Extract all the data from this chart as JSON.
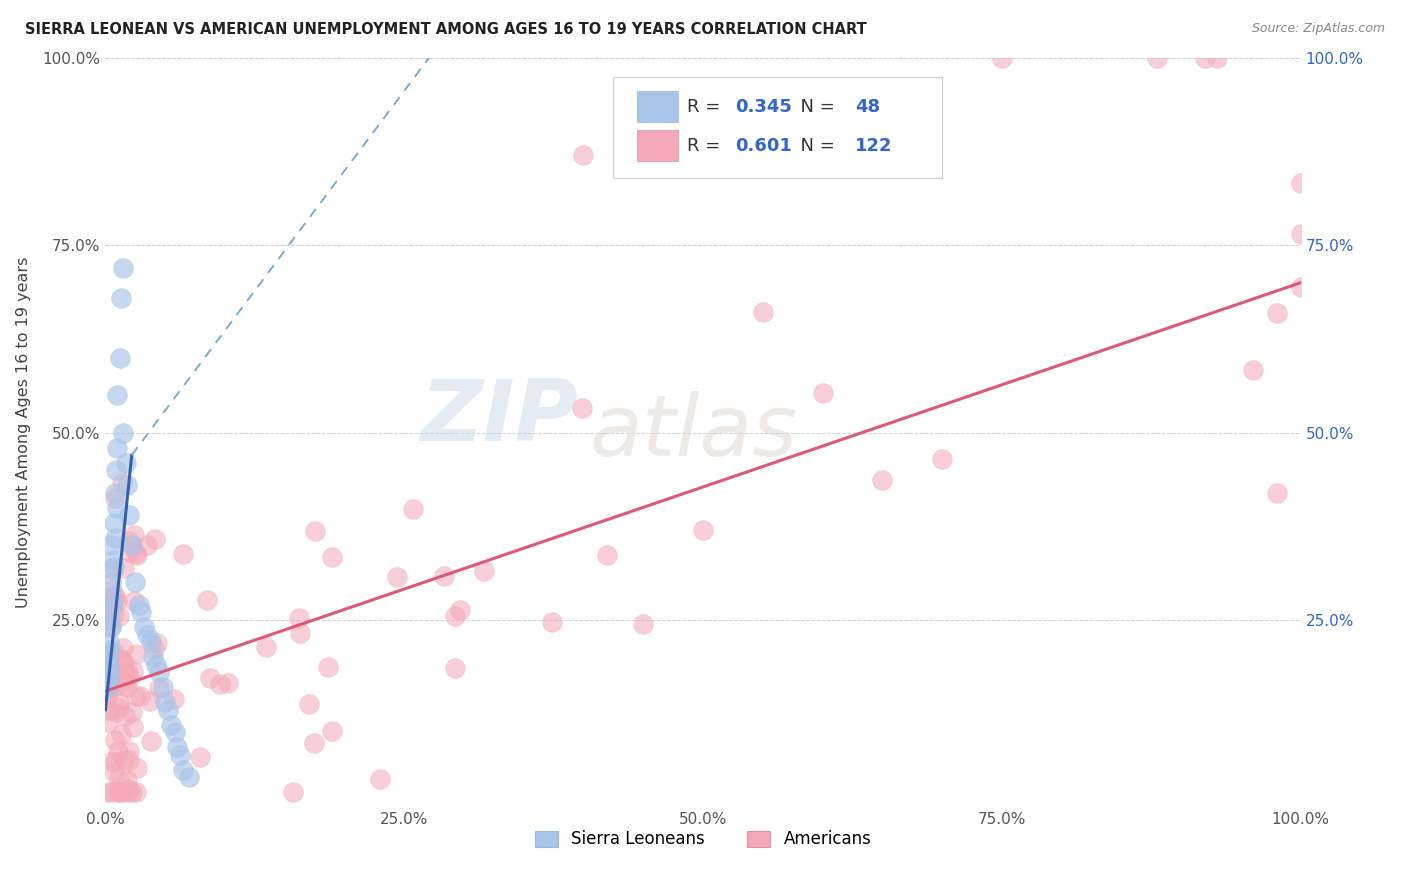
{
  "title": "SIERRA LEONEAN VS AMERICAN UNEMPLOYMENT AMONG AGES 16 TO 19 YEARS CORRELATION CHART",
  "source": "Source: ZipAtlas.com",
  "ylabel": "Unemployment Among Ages 16 to 19 years",
  "xlim": [
    0,
    1.0
  ],
  "ylim": [
    0,
    1.0
  ],
  "xtick_labels": [
    "0.0%",
    "25.0%",
    "50.0%",
    "75.0%",
    "100.0%"
  ],
  "xtick_vals": [
    0.0,
    0.25,
    0.5,
    0.75,
    1.0
  ],
  "ytick_labels_left": [
    "",
    "25.0%",
    "50.0%",
    "75.0%",
    "100.0%"
  ],
  "ytick_vals": [
    0.0,
    0.25,
    0.5,
    0.75,
    1.0
  ],
  "ytick_labels_right": [
    "",
    "25.0%",
    "50.0%",
    "75.0%",
    "100.0%"
  ],
  "sierra_R": "0.345",
  "sierra_N": "48",
  "american_R": "0.601",
  "american_N": "122",
  "sierra_color": "#a8c4e8",
  "american_color": "#f4a8b8",
  "sierra_trend_color_solid": "#3060b0",
  "sierra_trend_color_dash": "#7aaad8",
  "american_trend_color": "#e05878",
  "legend_label_1": "Sierra Leoneans",
  "legend_label_2": "Americans",
  "watermark_zip": "ZIP",
  "watermark_atlas": "atlas",
  "background_color": "#ffffff",
  "legend_r_n_color": "#3366cc",
  "legend_text_color": "#333333"
}
